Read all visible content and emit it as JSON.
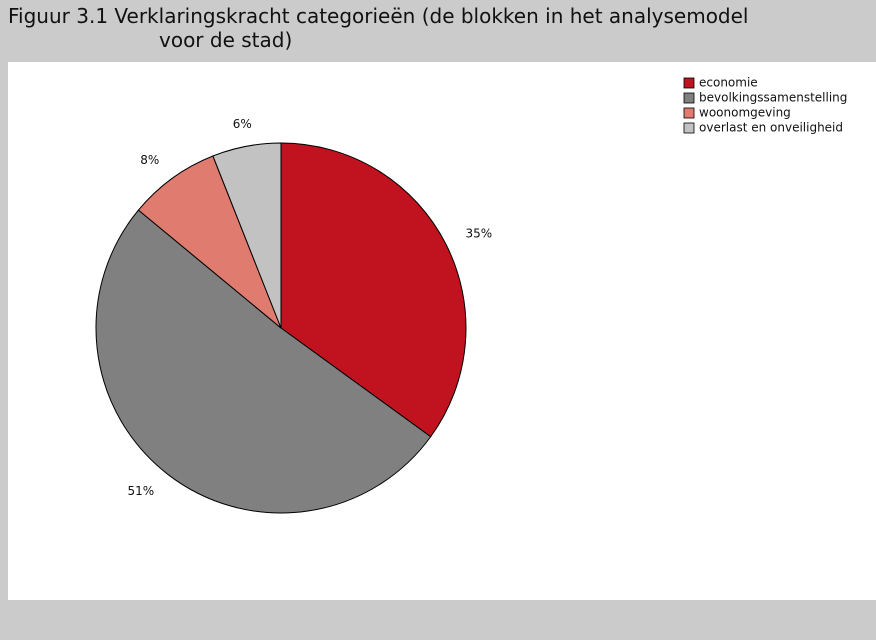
{
  "chart_data": {
    "type": "pie",
    "title": [
      "Figuur 3.1 Verklaringskracht categorieën (de blokken in het analysemodel",
      "voor de stad)"
    ],
    "categories": [
      "economie",
      "bevolkingssamenstelling",
      "woonomgeving",
      "overlast en onveiligheid"
    ],
    "values": [
      35,
      51,
      8,
      6
    ],
    "value_labels": [
      "35%",
      "51%",
      "8%",
      "6%"
    ],
    "colors": [
      "#c1121f",
      "#808080",
      "#e07b6f",
      "#c2c2c2"
    ],
    "legend": "top-right"
  }
}
